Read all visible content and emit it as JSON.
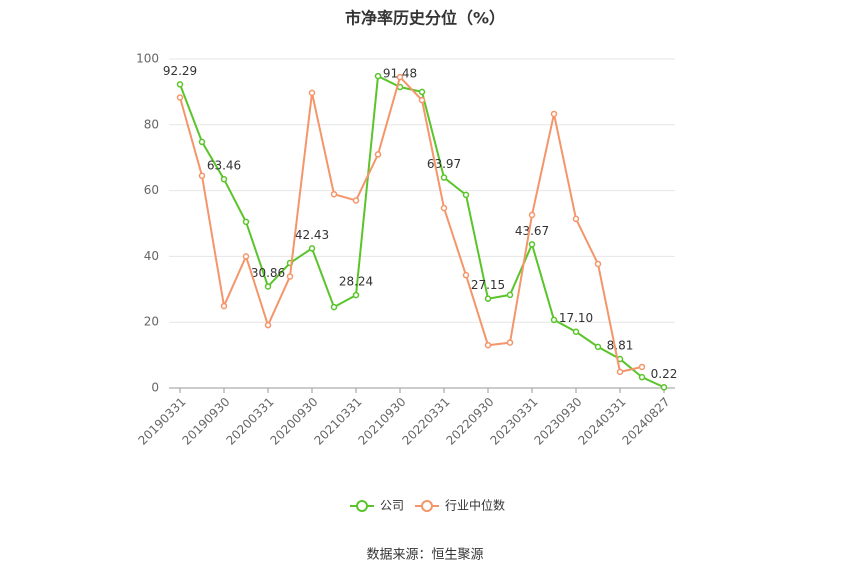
{
  "chart_data": {
    "type": "line",
    "title": "市净率历史分位（%）",
    "categories": [
      "20190331",
      null,
      "20190930",
      null,
      "20200331",
      null,
      "20200930",
      null,
      "20210331",
      null,
      "20210930",
      null,
      "20220331",
      null,
      "20220930",
      null,
      "20230331",
      null,
      "20230930",
      null,
      "20240331",
      null,
      "20240827"
    ],
    "series": [
      {
        "name": "公司",
        "color": "#5ac42a",
        "values": [
          92.29,
          74.8,
          63.46,
          50.5,
          30.86,
          38,
          42.43,
          24.6,
          28.24,
          94.8,
          91.48,
          90,
          63.97,
          58.7,
          27.15,
          28.3,
          43.67,
          20.7,
          17.1,
          12.5,
          8.81,
          3.3,
          0.22
        ],
        "value_labels": [
          "92.29",
          null,
          "63.46",
          null,
          "30.86",
          null,
          "42.43",
          null,
          "28.24",
          null,
          "91.48",
          null,
          "63.97",
          null,
          "27.15",
          null,
          "43.67",
          null,
          "17.10",
          null,
          "8.81",
          null,
          "0.22"
        ]
      },
      {
        "name": "行业中位数",
        "color": "#f4956a",
        "values": [
          88.3,
          64.5,
          24.9,
          40,
          19.1,
          33.9,
          89.7,
          58.9,
          57,
          71,
          94.5,
          87.5,
          54.7,
          34.3,
          13,
          13.8,
          52.6,
          83.3,
          51.4,
          37.7,
          4.9,
          6.4,
          null
        ]
      }
    ],
    "ylim": [
      0,
      100
    ],
    "yticks": [
      0,
      20,
      40,
      60,
      80,
      100
    ],
    "grid": true,
    "legend": "bottom",
    "source": "数据来源：恒生聚源"
  }
}
